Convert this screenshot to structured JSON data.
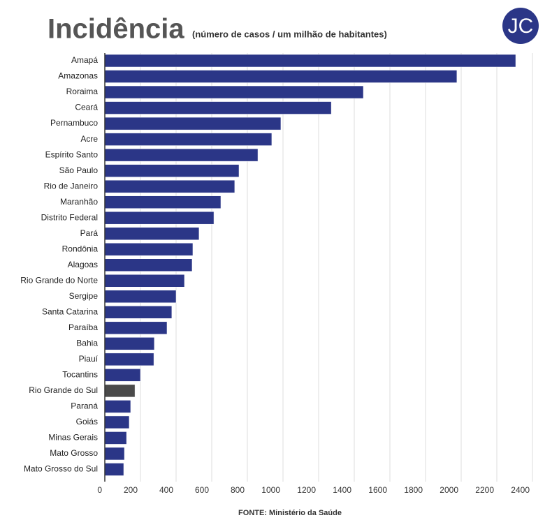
{
  "chart_data": {
    "type": "hbar",
    "title": "Incidência",
    "subtitle": "(número de casos / um milhão de habitantes)",
    "logo": "JC",
    "source": "FONTE: Ministério da Saúde",
    "categories": [
      "Amapá",
      "Amazonas",
      "Roraima",
      "Ceará",
      "Pernambuco",
      "Acre",
      "Espírito Santo",
      "São Paulo",
      "Rio de Janeiro",
      "Maranhão",
      "Distrito Federal",
      "Pará",
      "Rondônia",
      "Alagoas",
      "Rio Grande do Norte",
      "Sergipe",
      "Santa Catarina",
      "Paraíba",
      "Bahia",
      "Piauí",
      "Tocantins",
      "Rio Grande do Sul",
      "Paraná",
      "Goiás",
      "Minas Gerais",
      "Mato Grosso",
      "Mato Grosso do Sul"
    ],
    "values": [
      2306,
      1976,
      1451,
      1271,
      988,
      937,
      859,
      753,
      729,
      651,
      612,
      529,
      494,
      490,
      447,
      400,
      376,
      349,
      278,
      275,
      200,
      169,
      145,
      137,
      122,
      110,
      106
    ],
    "colors": [
      "#2b3687",
      "#2b3687",
      "#2b3687",
      "#2b3687",
      "#2b3687",
      "#2b3687",
      "#2b3687",
      "#2b3687",
      "#2b3687",
      "#2b3687",
      "#2b3687",
      "#2b3687",
      "#2b3687",
      "#2b3687",
      "#2b3687",
      "#2b3687",
      "#2b3687",
      "#2b3687",
      "#2b3687",
      "#2b3687",
      "#2b3687",
      "#4a4a4a",
      "#2b3687",
      "#2b3687",
      "#2b3687",
      "#2b3687",
      "#2b3687"
    ],
    "xlim": [
      0,
      2400
    ],
    "xticks": [
      0,
      200,
      400,
      600,
      800,
      1000,
      1200,
      1400,
      1600,
      1800,
      2000,
      2200,
      2400
    ],
    "grid": true
  }
}
